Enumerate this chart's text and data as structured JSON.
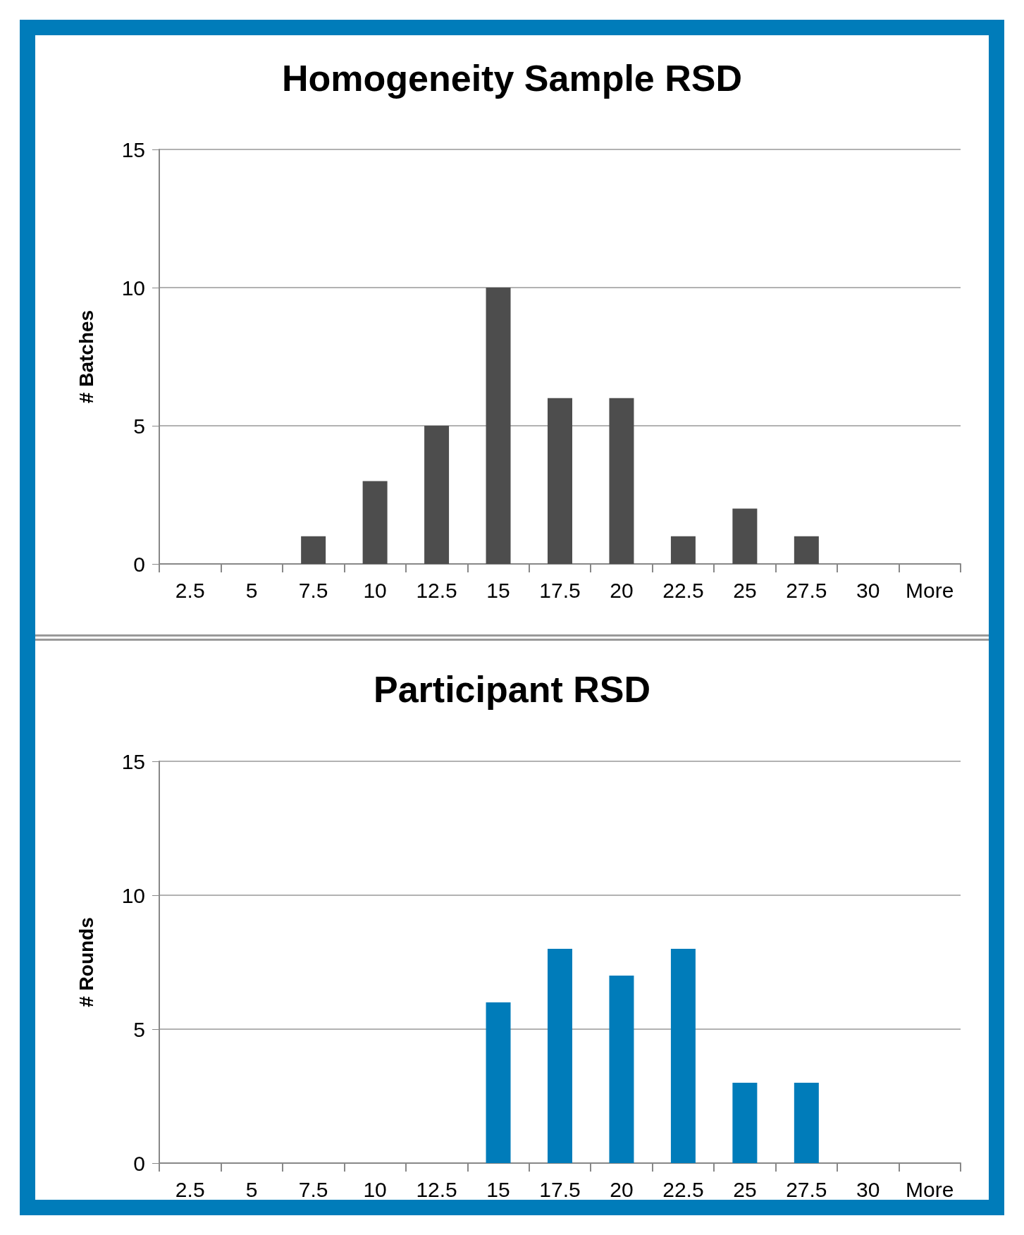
{
  "chart_data": [
    {
      "type": "bar",
      "title": "Homogeneity Sample RSD",
      "ylabel": "# Batches",
      "categories": [
        "2.5",
        "5",
        "7.5",
        "10",
        "12.5",
        "15",
        "17.5",
        "20",
        "22.5",
        "25",
        "27.5",
        "30",
        "More"
      ],
      "values": [
        0,
        0,
        1,
        3,
        5,
        10,
        6,
        6,
        1,
        2,
        1,
        0,
        0
      ],
      "color": "#4d4d4d",
      "ylim": [
        0,
        15
      ],
      "yticks": [
        0,
        5,
        10,
        15
      ],
      "grid": "y"
    },
    {
      "type": "bar",
      "title": "Participant RSD",
      "ylabel": "# Rounds",
      "categories": [
        "2.5",
        "5",
        "7.5",
        "10",
        "12.5",
        "15",
        "17.5",
        "20",
        "22.5",
        "25",
        "27.5",
        "30",
        "More"
      ],
      "values": [
        0,
        0,
        0,
        0,
        0,
        6,
        8,
        7,
        8,
        3,
        3,
        0,
        0
      ],
      "color": "#007cba",
      "ylim": [
        0,
        15
      ],
      "yticks": [
        0,
        5,
        10,
        15
      ],
      "grid": "y"
    }
  ]
}
